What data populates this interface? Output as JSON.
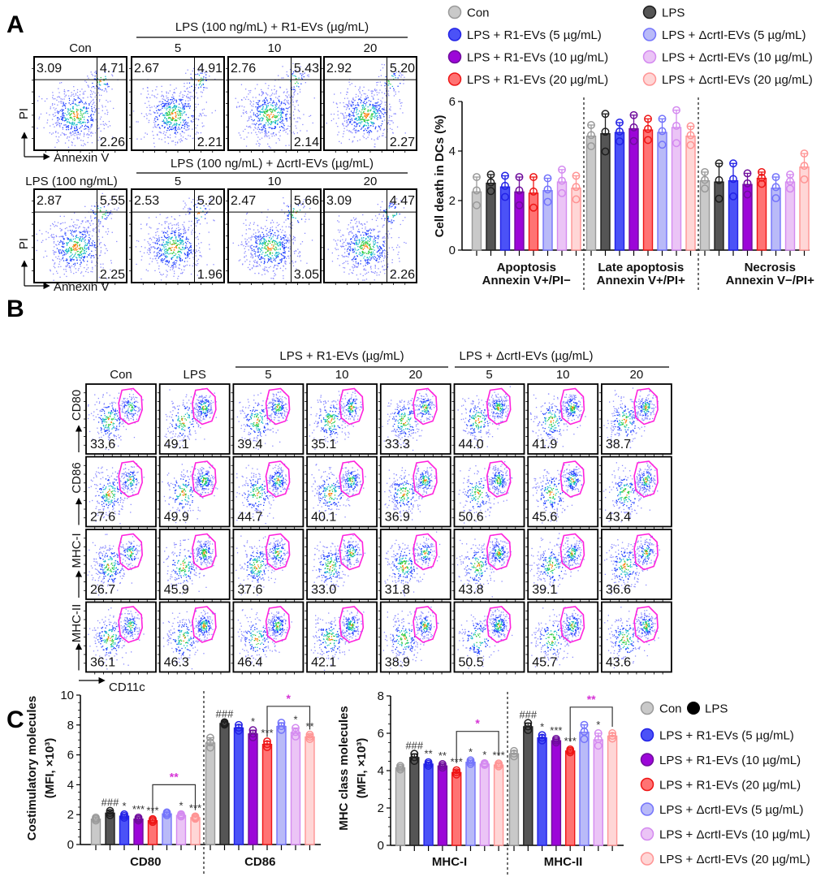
{
  "panel_labels": {
    "a": "A",
    "b": "B",
    "c": "C"
  },
  "colors": {
    "con": {
      "fill": "#c9c9c9",
      "stroke": "#9a9a9a"
    },
    "lps": {
      "fill": "#555555",
      "stroke": "#1e1e1e"
    },
    "r1_5": {
      "fill": "#4b52f7",
      "stroke": "#2222e6"
    },
    "r1_10": {
      "fill": "#9c06d8",
      "stroke": "#6f0d9c"
    },
    "r1_20": {
      "fill": "#ff7373",
      "stroke": "#ee1515"
    },
    "crt_5": {
      "fill": "#b9baf8",
      "stroke": "#7474fb"
    },
    "crt_10": {
      "fill": "#ebc4f6",
      "stroke": "#d48af0"
    },
    "crt_20": {
      "fill": "#ffd6d6",
      "stroke": "#ff9494"
    },
    "gate": "#ff22dd",
    "significance_accent": "#d633d6"
  },
  "panel_a": {
    "row1_header": "LPS (100 ng/mL) + R1-EVs (µg/mL)",
    "row2_header": "LPS (100 ng/mL) + ΔcrtI-EVs (µg/mL)",
    "row1_cols": [
      "Con",
      "5",
      "10",
      "20"
    ],
    "row2_cols": [
      "LPS (100 ng/mL)",
      "5",
      "10",
      "20"
    ],
    "y_axis": "PI",
    "x_axis": "Annexin V",
    "row1_plots": [
      {
        "ul": "3.09",
        "ur": "4.71",
        "lr": "2.26"
      },
      {
        "ul": "2.67",
        "ur": "4.91",
        "lr": "2.21"
      },
      {
        "ul": "2.76",
        "ur": "5.43",
        "lr": "2.14"
      },
      {
        "ul": "2.92",
        "ur": "5.20",
        "lr": "2.27"
      }
    ],
    "row2_plots": [
      {
        "ul": "2.87",
        "ur": "5.55",
        "lr": "2.25"
      },
      {
        "ul": "2.53",
        "ur": "5.20",
        "lr": "1.96"
      },
      {
        "ul": "2.47",
        "ur": "5.66",
        "lr": "3.05"
      },
      {
        "ul": "3.09",
        "ur": "4.47",
        "lr": "2.26"
      }
    ]
  },
  "legend_a": [
    "Con",
    "LPS",
    "LPS + R1-EVs (5 µg/mL)",
    "LPS + ΔcrtI-EVs (5 µg/mL)",
    "LPS + R1-EVs (10 µg/mL)",
    "LPS + ΔcrtI-EVs (10 µg/mL)",
    "LPS + R1-EVs (20 µg/mL)",
    "LPS + ΔcrtI-EVs (20 µg/mL)"
  ],
  "panel_b": {
    "cols": [
      "Con",
      "LPS",
      "5",
      "10",
      "20",
      "5",
      "10",
      "20"
    ],
    "group_headers": [
      "LPS + R1-EVs (µg/mL)",
      "LPS + ΔcrtI-EVs (µg/mL)"
    ],
    "markers": [
      "CD80",
      "CD86",
      "MHC-I",
      "MHC-II"
    ],
    "x_axis": "CD11c",
    "values": [
      [
        "33.6",
        "49.1",
        "39.4",
        "35.1",
        "33.3",
        "44.0",
        "41.9",
        "38.7"
      ],
      [
        "27.6",
        "49.9",
        "44.7",
        "40.1",
        "36.9",
        "50.6",
        "45.6",
        "43.4"
      ],
      [
        "26.7",
        "45.9",
        "37.6",
        "33.0",
        "31.8",
        "43.8",
        "39.1",
        "36.6"
      ],
      [
        "36.1",
        "46.3",
        "46.4",
        "42.1",
        "38.9",
        "50.5",
        "45.7",
        "43.6"
      ]
    ]
  },
  "legend_c": {
    "con": "Con",
    "lps": "LPS",
    "items": [
      "LPS + R1-EVs (5 µg/mL)",
      "LPS + R1-EVs (10 µg/mL)",
      "LPS + R1-EVs (20 µg/mL)",
      "LPS + ΔcrtI-EVs (5 µg/mL)",
      "LPS + ΔcrtI-EVs (10 µg/mL)",
      "LPS + ΔcrtI-EVs (20 µg/mL)"
    ]
  },
  "chart_data": [
    {
      "type": "bar",
      "title": "",
      "ylabel": "Cell death in DCs (%)",
      "ylim": [
        0,
        6
      ],
      "yticks": [
        0,
        2,
        4,
        6
      ],
      "groups": [
        {
          "label": "Apoptosis",
          "sublabel": "Annexin V+/PI−"
        },
        {
          "label": "Late apoptosis",
          "sublabel": "Annexin V+/PI+"
        },
        {
          "label": "Necrosis",
          "sublabel": "Annexin V−/PI+"
        }
      ],
      "series_keys": [
        "con",
        "lps",
        "r1_5",
        "r1_10",
        "r1_20",
        "crt_5",
        "crt_10",
        "crt_20"
      ],
      "values": [
        [
          2.35,
          2.7,
          2.55,
          2.35,
          2.3,
          2.4,
          2.75,
          2.5
        ],
        [
          4.6,
          4.7,
          4.75,
          4.9,
          4.85,
          4.75,
          4.95,
          4.6
        ],
        [
          2.8,
          2.75,
          2.8,
          2.65,
          2.9,
          2.5,
          2.75,
          3.35
        ]
      ],
      "sd": [
        [
          0.6,
          0.35,
          0.45,
          0.6,
          0.65,
          0.5,
          0.5,
          0.5
        ],
        [
          0.45,
          0.8,
          0.4,
          0.55,
          0.45,
          0.55,
          0.7,
          0.4
        ],
        [
          0.35,
          0.75,
          0.7,
          0.45,
          0.25,
          0.45,
          0.3,
          0.55
        ]
      ],
      "significance": []
    },
    {
      "type": "bar",
      "ylabel": "Costimulatory molecules",
      "ylabel2": "(MFI, ×10³)",
      "ylim": [
        0,
        10
      ],
      "yticks": [
        0,
        2,
        4,
        6,
        8,
        10
      ],
      "groups": [
        {
          "label": "CD80"
        },
        {
          "label": "CD86"
        }
      ],
      "series_keys": [
        "con",
        "lps",
        "r1_5",
        "r1_10",
        "r1_20",
        "crt_5",
        "crt_10",
        "crt_20"
      ],
      "values": [
        [
          1.7,
          2.1,
          1.9,
          1.7,
          1.6,
          2.05,
          1.95,
          1.8
        ],
        [
          6.8,
          8.1,
          7.8,
          7.4,
          6.7,
          7.9,
          7.5,
          7.2
        ]
      ],
      "sd": [
        [
          0.1,
          0.15,
          0.12,
          0.1,
          0.1,
          0.1,
          0.08,
          0.08
        ],
        [
          0.35,
          0.08,
          0.2,
          0.25,
          0.2,
          0.25,
          0.3,
          0.15
        ]
      ],
      "significance": [
        [
          "",
          "###",
          "*",
          "***",
          "***",
          "",
          "*",
          "***"
        ],
        [
          "",
          "###",
          "",
          "*",
          "***",
          "",
          "*",
          "**"
        ]
      ],
      "brackets": [
        {
          "from": 4,
          "to": 7,
          "label": "**",
          "level": 4.0
        },
        {
          "from": 4,
          "to": 7,
          "label": "*",
          "level": 9.25
        }
      ]
    },
    {
      "type": "bar",
      "ylabel": "MHC class molecules",
      "ylabel2": "(MFI, ×10³)",
      "ylim": [
        0,
        8
      ],
      "yticks": [
        0,
        2,
        4,
        6,
        8
      ],
      "groups": [
        {
          "label": "MHC-I"
        },
        {
          "label": "MHC-II"
        }
      ],
      "series_keys": [
        "con",
        "lps",
        "r1_5",
        "r1_10",
        "r1_20",
        "crt_5",
        "crt_10",
        "crt_20"
      ],
      "values": [
        [
          4.15,
          4.7,
          4.35,
          4.25,
          3.9,
          4.45,
          4.35,
          4.3
        ],
        [
          4.9,
          6.35,
          5.75,
          5.6,
          5.05,
          6.05,
          5.65,
          5.85
        ]
      ],
      "sd": [
        [
          0.1,
          0.2,
          0.1,
          0.1,
          0.12,
          0.1,
          0.05,
          0.08
        ],
        [
          0.15,
          0.2,
          0.15,
          0.1,
          0.08,
          0.4,
          0.35,
          0.15
        ]
      ],
      "significance": [
        [
          "",
          "###",
          "**",
          "**",
          "***",
          "*",
          "*",
          "***"
        ],
        [
          "",
          "###",
          "*",
          "***",
          "***",
          "",
          "*",
          ""
        ]
      ],
      "brackets": [
        {
          "from": 4,
          "to": 7,
          "label": "*",
          "level": 6.1
        },
        {
          "from": 4,
          "to": 7,
          "label": "**",
          "level": 7.4
        }
      ]
    }
  ]
}
